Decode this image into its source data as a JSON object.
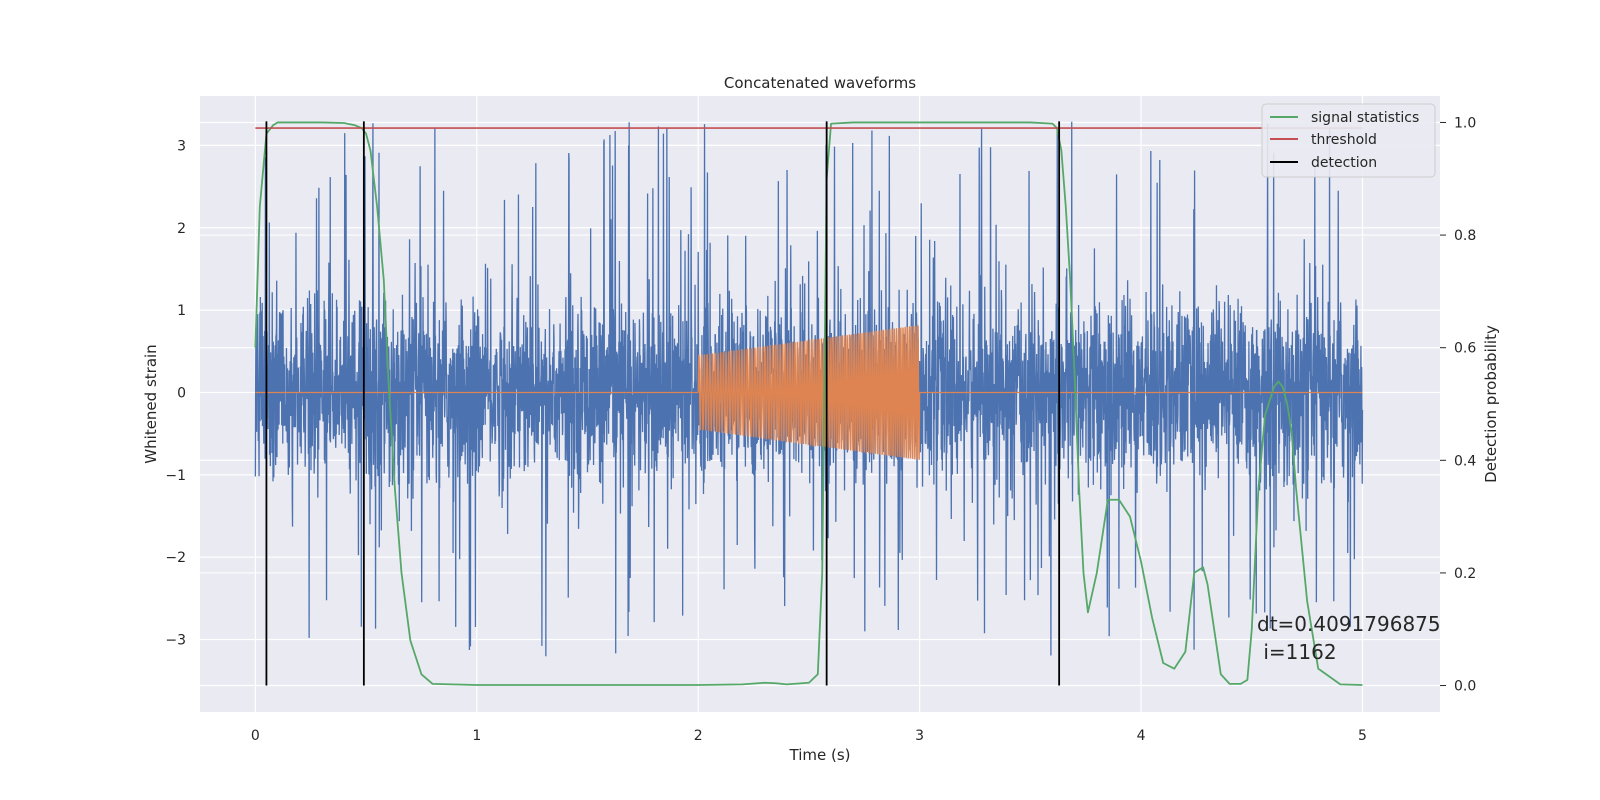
{
  "chart_data": {
    "type": "line",
    "title": "Concatenated waveforms",
    "xlabel": "Time (s)",
    "ylabel_left": "Whitened strain",
    "ylabel_right": "Detection probability",
    "xlim": [
      -0.25,
      5.35
    ],
    "ylim_left": [
      -3.88,
      3.6
    ],
    "ylim_right": [
      -0.047,
      1.047
    ],
    "xticks": [
      0,
      1,
      2,
      3,
      4,
      5
    ],
    "yticks_left": [
      -3,
      -2,
      -1,
      0,
      1,
      2,
      3
    ],
    "yticks_right": [
      0.0,
      0.2,
      0.4,
      0.6,
      0.8,
      1.0
    ],
    "xtick_labels": [
      "0",
      "1",
      "2",
      "3",
      "4",
      "5"
    ],
    "ytick_labels_left": [
      "−3",
      "−2",
      "−1",
      "0",
      "1",
      "2",
      "3"
    ],
    "ytick_labels_right": [
      "0.0",
      "0.2",
      "0.4",
      "0.6",
      "0.8",
      "1.0"
    ],
    "grid": true,
    "legend_position": "top-right",
    "legend": [
      "signal statistics",
      "threshold",
      "detection"
    ],
    "colors": {
      "strain": "#4c72b0",
      "injection": "#dd8452",
      "signal_statistics": "#55a868",
      "threshold": "#c44e52",
      "detection": "#000000",
      "background": "#eaeaf2",
      "grid": "#ffffff"
    },
    "threshold": 0.99,
    "detections": [
      0.05,
      0.49,
      2.58,
      3.63
    ],
    "injection": {
      "t_start": 2.0,
      "t_end": 3.0,
      "amp_start": 0.45,
      "amp_end": 0.82,
      "cycles": 80
    },
    "strain_noise": {
      "t_start": 0.0,
      "t_end": 5.0,
      "band_sigma": 0.55,
      "spike_max": 3.3
    },
    "signal_statistics": {
      "x": [
        0.0,
        0.02,
        0.05,
        0.08,
        0.1,
        0.2,
        0.3,
        0.4,
        0.45,
        0.48,
        0.5,
        0.52,
        0.55,
        0.58,
        0.6,
        0.63,
        0.66,
        0.7,
        0.75,
        0.8,
        1.0,
        1.5,
        2.0,
        2.2,
        2.3,
        2.35,
        2.4,
        2.5,
        2.54,
        2.56,
        2.58,
        2.6,
        2.7,
        3.0,
        3.5,
        3.6,
        3.62,
        3.64,
        3.66,
        3.68,
        3.7,
        3.72,
        3.74,
        3.76,
        3.8,
        3.85,
        3.9,
        3.95,
        4.0,
        4.05,
        4.1,
        4.15,
        4.2,
        4.24,
        4.28,
        4.3,
        4.33,
        4.36,
        4.4,
        4.45,
        4.48,
        4.5,
        4.53,
        4.56,
        4.6,
        4.62,
        4.64,
        4.66,
        4.68,
        4.7,
        4.75,
        4.8,
        4.9,
        5.0
      ],
      "y": [
        0.6,
        0.85,
        0.98,
        0.995,
        1.0,
        1.0,
        1.0,
        0.999,
        0.995,
        0.99,
        0.98,
        0.95,
        0.85,
        0.72,
        0.55,
        0.35,
        0.2,
        0.08,
        0.02,
        0.003,
        0.001,
        0.001,
        0.001,
        0.002,
        0.005,
        0.004,
        0.002,
        0.005,
        0.02,
        0.2,
        0.9,
        0.998,
        1.0,
        1.0,
        1.0,
        0.998,
        0.99,
        0.95,
        0.85,
        0.72,
        0.55,
        0.35,
        0.2,
        0.13,
        0.2,
        0.33,
        0.33,
        0.3,
        0.22,
        0.12,
        0.04,
        0.03,
        0.06,
        0.2,
        0.21,
        0.18,
        0.1,
        0.02,
        0.003,
        0.003,
        0.01,
        0.1,
        0.35,
        0.48,
        0.53,
        0.54,
        0.53,
        0.5,
        0.45,
        0.35,
        0.15,
        0.03,
        0.002,
        0.001
      ]
    },
    "annotation": {
      "line1": "dt=0.4091796875",
      "line2": " i=1162"
    }
  }
}
